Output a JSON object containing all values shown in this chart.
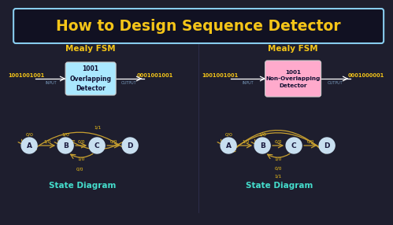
{
  "bg_color": "#1e1e2e",
  "title": "How to Design Sequence Detector",
  "title_color": "#f5c518",
  "title_border_color": "#88ccee",
  "left_label": "Mealy FSM",
  "right_label": "Mealy FSM",
  "left_box_color": "#aae8ff",
  "right_box_color": "#ffaacc",
  "left_box_text": "1001\nOverlapping\nDetector",
  "right_box_text": "1001\nNon-Overlapping\nDetector",
  "left_input": "1001001001",
  "left_output": "0001001001",
  "right_input": "1001001001",
  "right_output": "0001000001",
  "arrow_color": "#c8a030",
  "state_bg": "#c8dff0",
  "state_border": "#7aaabb",
  "state_text_color": "#1a1a3e",
  "diagram_label": "State Diagram",
  "diagram_label_color": "#44ddcc",
  "io_color": "#f5c518",
  "io_label_color": "#7799bb",
  "edge_label_color": "#f5c518"
}
